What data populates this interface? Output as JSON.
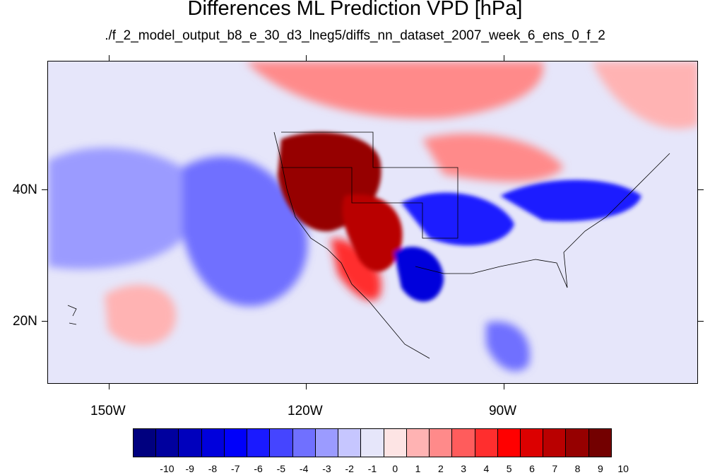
{
  "title": "Differences ML Prediction VPD [hPa]",
  "subtitle": "./f_2_model_output_b8_e_30_d3_lneg5/diffs_nn_dataset_2007_week_6_ens_0_f_2",
  "axes": {
    "y_ticks": [
      {
        "label": "40N",
        "lat": 40
      },
      {
        "label": "20N",
        "lat": 20
      }
    ],
    "x_ticks": [
      {
        "label": "150W",
        "lon": -150
      },
      {
        "label": "120W",
        "lon": -120
      },
      {
        "label": "90W",
        "lon": -90
      }
    ]
  },
  "colorbar": {
    "labels": [
      "-10",
      "-9",
      "-8",
      "-7",
      "-6",
      "-5",
      "-4",
      "-3",
      "-2",
      "-1",
      "0",
      "1",
      "2",
      "3",
      "4",
      "5",
      "6",
      "7",
      "8",
      "9",
      "10"
    ],
    "colors": [
      "#00007f",
      "#00009e",
      "#0000bd",
      "#0000dc",
      "#0000fa",
      "#1a1aff",
      "#4545ff",
      "#7070ff",
      "#9b9bff",
      "#c6c6ff",
      "#e6e6fa",
      "#fde4e4",
      "#ffb3b3",
      "#ff8a8a",
      "#ff5c5c",
      "#ff2e2e",
      "#ff0000",
      "#dc0000",
      "#b90000",
      "#960000",
      "#730000"
    ]
  },
  "regions": [
    {
      "name": "pacific-west-low",
      "value": -3
    },
    {
      "name": "pacific-central-low",
      "value": -4
    },
    {
      "name": "hawaii-northeast-high",
      "value": 2
    },
    {
      "name": "canada-high",
      "value": 3
    },
    {
      "name": "western-us-high",
      "value": 9
    },
    {
      "name": "southwest-us-high",
      "value": 8
    },
    {
      "name": "mexico-high",
      "value": 6
    },
    {
      "name": "texas-low",
      "value": -6
    },
    {
      "name": "southern-plains-low",
      "value": -5
    },
    {
      "name": "ohio-valley-low",
      "value": -5
    },
    {
      "name": "great-lakes-high",
      "value": 3
    },
    {
      "name": "atlantic-high",
      "value": 2
    },
    {
      "name": "caribbean-low",
      "value": -4
    }
  ],
  "colors": {
    "land_outline": "#000000",
    "background": "#ffffff"
  }
}
